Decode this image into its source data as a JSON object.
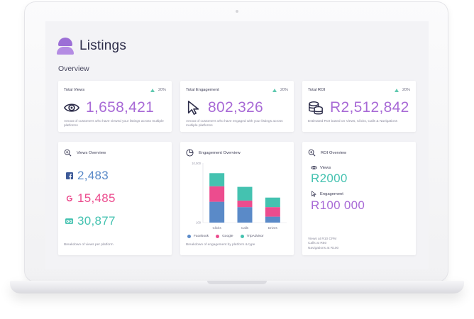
{
  "app": {
    "title": "Listings",
    "section": "Overview"
  },
  "colors": {
    "purple": "#a86ad6",
    "blue": "#5a8ac8",
    "pink": "#ec4c8e",
    "teal": "#44c2b0"
  },
  "cards": {
    "total_views": {
      "label": "Total Views",
      "change": "20%",
      "value": "1,658,421",
      "icon": "eye-icon",
      "desc": "Amout of customers who have viewed your listings across multiple platforms"
    },
    "total_engagement": {
      "label": "Total Engagement",
      "change": "20%",
      "value": "802,326",
      "icon": "cursor-icon",
      "desc": "Amout of customers who have engaged with your listings across multiple platforms"
    },
    "total_roi": {
      "label": "Total ROI",
      "change": "20%",
      "value": "R2,512,842",
      "icon": "coins-icon",
      "desc": "Estimated ROI based on Views, Clicks, Calls & Navigations"
    }
  },
  "views_overview": {
    "title": "Views Overview",
    "rows": [
      {
        "icon": "facebook-icon",
        "value": "2,483"
      },
      {
        "icon": "google-icon",
        "value": "15,485"
      },
      {
        "icon": "tripadvisor-icon",
        "value": "30,877"
      }
    ],
    "footer": "Breakdown of views per platform"
  },
  "engagement_overview": {
    "title": "Engagement Overview",
    "footer": "Breakdown of engagement by platform & type",
    "legend": [
      "Facebook",
      "Google",
      "TripAdvisor"
    ]
  },
  "chart_data": {
    "type": "bar",
    "stacked": true,
    "categories": [
      "Clicks",
      "Calls",
      "Drives"
    ],
    "series": [
      {
        "name": "Facebook",
        "values": [
          3500,
          2600,
          1000
        ]
      },
      {
        "name": "Google",
        "values": [
          2600,
          1100,
          1600
        ]
      },
      {
        "name": "TripAdvisor",
        "values": [
          2200,
          2300,
          1600
        ]
      }
    ],
    "y_ticks": [
      "10,000",
      "100"
    ],
    "ylim": [
      0,
      10000
    ]
  },
  "roi_overview": {
    "title": "ROI Overview",
    "views_label": "Views",
    "views_value": "R2000",
    "engagement_label": "Engagement",
    "engagement_value": "R100 000",
    "notes": [
      "Views at R10 CPM",
      "Calls at R50",
      "Navigations at R100"
    ]
  }
}
